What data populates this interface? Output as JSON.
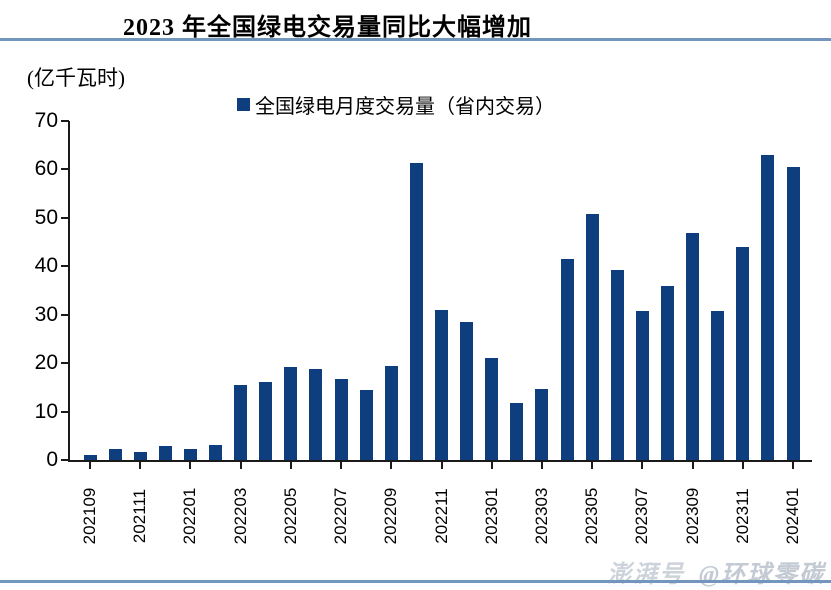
{
  "title": "2023 年全国绿电交易量同比大幅增加",
  "unit_label": "(亿千瓦时)",
  "legend_label": "全国绿电月度交易量（省内交易）",
  "watermark": {
    "platform": "澎湃号",
    "account": "@环球零碳"
  },
  "colors": {
    "bar": "#0e3e7d",
    "rule": "#7396bf",
    "axis": "#1a1a1a"
  },
  "chart_data": {
    "type": "bar",
    "title": "2023 年全国绿电交易量同比大幅增加",
    "ylabel": "(亿千瓦时)",
    "xlabel": "",
    "legend_entries": [
      "全国绿电月度交易量（省内交易）"
    ],
    "legend_position": "top",
    "grid": false,
    "ylim": [
      0,
      70
    ],
    "y_ticks": [
      0,
      10,
      20,
      30,
      40,
      50,
      60,
      70
    ],
    "categories": [
      "202109",
      "202110",
      "202111",
      "202112",
      "202201",
      "202202",
      "202203",
      "202204",
      "202205",
      "202206",
      "202207",
      "202208",
      "202209",
      "202210",
      "202211",
      "202212",
      "202301",
      "202302",
      "202303",
      "202304",
      "202305",
      "202306",
      "202307",
      "202308",
      "202309",
      "202310",
      "202311",
      "202312",
      "202401"
    ],
    "x_tick_labels": [
      "202109",
      "202111",
      "202201",
      "202203",
      "202205",
      "202207",
      "202209",
      "202211",
      "202301",
      "202303",
      "202305",
      "202307",
      "202309",
      "202311",
      "202401"
    ],
    "values": [
      1.0,
      2.2,
      1.6,
      2.8,
      2.2,
      3.2,
      15.5,
      16.2,
      19.2,
      18.7,
      16.7,
      14.4,
      19.4,
      61.3,
      30.9,
      28.4,
      21.1,
      11.8,
      14.6,
      41.5,
      50.7,
      39.2,
      30.8,
      35.9,
      46.8,
      30.8,
      44.0,
      63.0,
      60.4
    ]
  }
}
